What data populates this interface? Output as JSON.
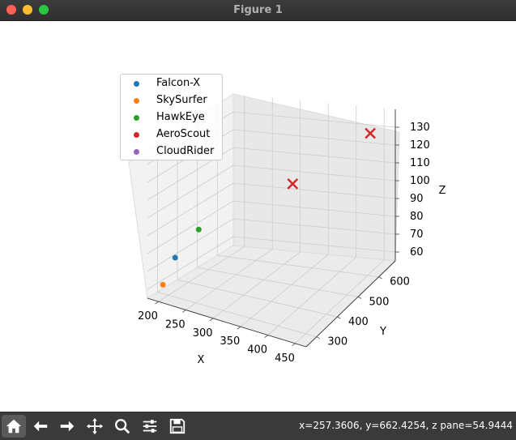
{
  "window": {
    "title": "Figure 1"
  },
  "toolbar": {
    "tools": [
      {
        "name": "home-icon"
      },
      {
        "name": "back-arrow-icon"
      },
      {
        "name": "forward-arrow-icon"
      },
      {
        "name": "pan-icon"
      },
      {
        "name": "zoom-icon"
      },
      {
        "name": "configure-subplots-icon"
      },
      {
        "name": "save-icon"
      }
    ],
    "coordinates": "x=257.3606, y=662.4254, z pane=54.9444"
  },
  "legend": {
    "entries": [
      {
        "label": "Falcon-X",
        "color": "#1f77b4"
      },
      {
        "label": "SkySurfer",
        "color": "#ff7f0e"
      },
      {
        "label": "HawkEye",
        "color": "#2ca02c"
      },
      {
        "label": "AeroScout",
        "color": "#d62728"
      },
      {
        "label": "CloudRider",
        "color": "#9467bd"
      }
    ]
  },
  "chart_data": {
    "type": "scatter",
    "projection": "3d",
    "xlabel": "X",
    "ylabel": "Y",
    "zlabel": "Z",
    "x_ticks": [
      "200",
      "250",
      "300",
      "350",
      "400",
      "450"
    ],
    "y_ticks": [
      "300",
      "400",
      "500",
      "600"
    ],
    "z_ticks": [
      "60",
      "70",
      "80",
      "90",
      "100",
      "110",
      "120",
      "130"
    ],
    "series": [
      {
        "name": "Falcon-X",
        "color": "#1f77b4",
        "marker": "o",
        "points": [
          [
            205,
            320,
            75
          ]
        ]
      },
      {
        "name": "SkySurfer",
        "color": "#ff7f0e",
        "marker": "o",
        "points": [
          [
            190,
            300,
            60
          ]
        ]
      },
      {
        "name": "HawkEye",
        "color": "#2ca02c",
        "marker": "o",
        "points": [
          [
            215,
            410,
            85
          ]
        ]
      },
      {
        "name": "AeroScout",
        "color": "#d62728",
        "marker": "x",
        "points": [
          [
            330,
            560,
            105
          ],
          [
            440,
            640,
            130
          ]
        ]
      },
      {
        "name": "CloudRider",
        "color": "#9467bd",
        "marker": "o",
        "points": []
      }
    ]
  }
}
